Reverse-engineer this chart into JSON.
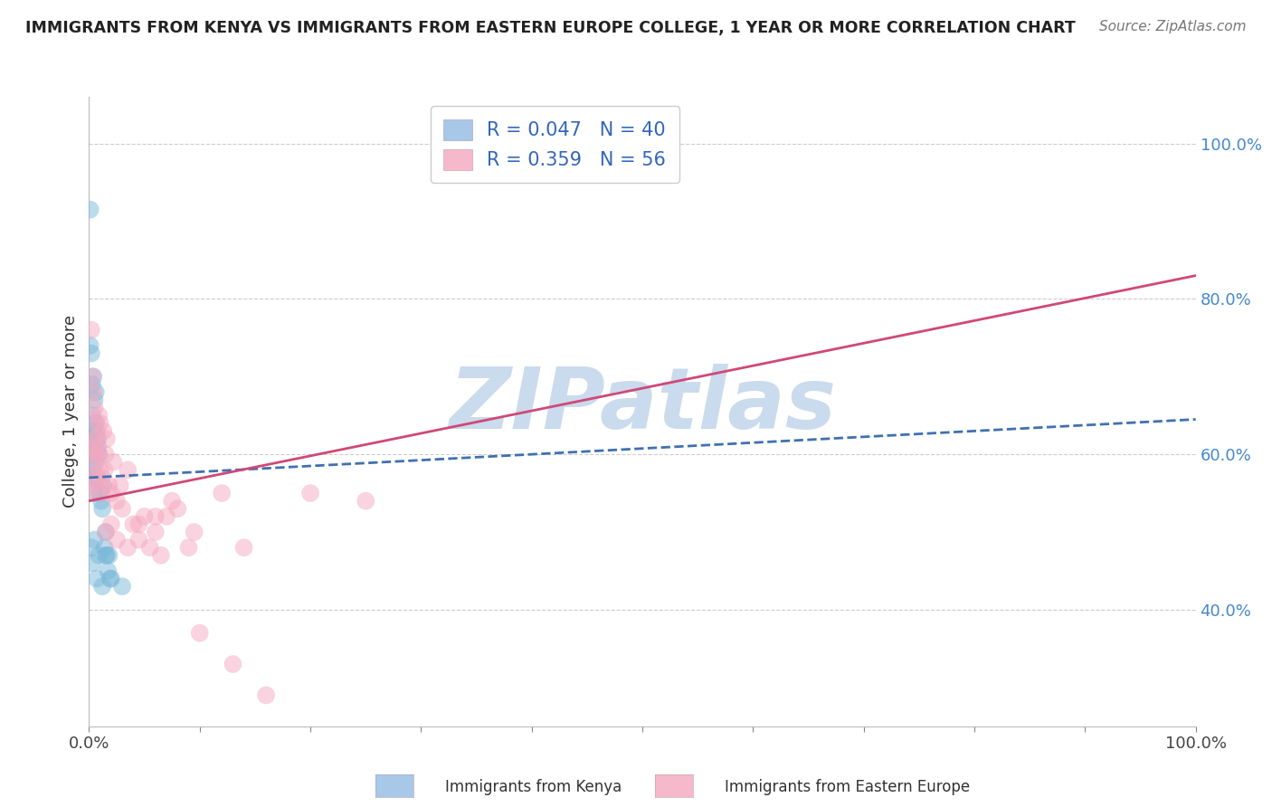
{
  "title": "IMMIGRANTS FROM KENYA VS IMMIGRANTS FROM EASTERN EUROPE COLLEGE, 1 YEAR OR MORE CORRELATION CHART",
  "source": "Source: ZipAtlas.com",
  "ylabel": "College, 1 year or more",
  "ylabel_right_ticks": [
    "40.0%",
    "60.0%",
    "80.0%",
    "100.0%"
  ],
  "ylabel_right_vals": [
    0.4,
    0.6,
    0.8,
    1.0
  ],
  "blue_scatter_x": [
    0.001,
    0.002,
    0.002,
    0.003,
    0.003,
    0.004,
    0.004,
    0.005,
    0.005,
    0.006,
    0.006,
    0.007,
    0.007,
    0.008,
    0.008,
    0.009,
    0.01,
    0.011,
    0.012,
    0.013,
    0.014,
    0.015,
    0.016,
    0.017,
    0.018,
    0.019,
    0.003,
    0.004,
    0.006,
    0.002,
    0.001,
    0.002,
    0.003,
    0.005,
    0.007,
    0.009,
    0.012,
    0.015,
    0.02,
    0.03
  ],
  "blue_scatter_y": [
    0.915,
    0.62,
    0.57,
    0.65,
    0.6,
    0.63,
    0.58,
    0.67,
    0.55,
    0.64,
    0.59,
    0.63,
    0.57,
    0.62,
    0.61,
    0.6,
    0.55,
    0.54,
    0.53,
    0.56,
    0.48,
    0.5,
    0.47,
    0.45,
    0.47,
    0.44,
    0.69,
    0.7,
    0.68,
    0.73,
    0.74,
    0.48,
    0.46,
    0.49,
    0.44,
    0.47,
    0.43,
    0.47,
    0.44,
    0.43
  ],
  "pink_scatter_x": [
    0.001,
    0.002,
    0.003,
    0.004,
    0.005,
    0.006,
    0.007,
    0.008,
    0.009,
    0.01,
    0.011,
    0.012,
    0.013,
    0.014,
    0.015,
    0.016,
    0.018,
    0.02,
    0.022,
    0.025,
    0.028,
    0.03,
    0.035,
    0.04,
    0.045,
    0.05,
    0.055,
    0.06,
    0.065,
    0.07,
    0.08,
    0.09,
    0.1,
    0.12,
    0.14,
    0.002,
    0.003,
    0.004,
    0.005,
    0.006,
    0.007,
    0.008,
    0.01,
    0.012,
    0.015,
    0.02,
    0.025,
    0.035,
    0.045,
    0.06,
    0.075,
    0.095,
    0.13,
    0.16,
    0.2,
    0.25
  ],
  "pink_scatter_y": [
    0.56,
    0.55,
    0.6,
    0.58,
    0.62,
    0.61,
    0.57,
    0.6,
    0.65,
    0.64,
    0.55,
    0.57,
    0.63,
    0.58,
    0.6,
    0.62,
    0.56,
    0.55,
    0.59,
    0.54,
    0.56,
    0.53,
    0.58,
    0.51,
    0.49,
    0.52,
    0.48,
    0.5,
    0.47,
    0.52,
    0.53,
    0.48,
    0.37,
    0.55,
    0.48,
    0.76,
    0.7,
    0.68,
    0.66,
    0.64,
    0.62,
    0.6,
    0.58,
    0.56,
    0.5,
    0.51,
    0.49,
    0.48,
    0.51,
    0.52,
    0.54,
    0.5,
    0.33,
    0.29,
    0.55,
    0.54
  ],
  "blue_line_x": [
    0.0,
    1.0
  ],
  "blue_line_y": [
    0.57,
    0.645
  ],
  "pink_line_x": [
    0.0,
    1.0
  ],
  "pink_line_y": [
    0.54,
    0.83
  ],
  "blue_color": "#7ab8d9",
  "pink_color": "#f5a8c0",
  "blue_line_color": "#4070b0",
  "pink_line_color": "#d04878",
  "watermark": "ZIPatlas",
  "watermark_color": "#c5d8ec",
  "xlim": [
    0.0,
    1.0
  ],
  "ylim": [
    0.25,
    1.06
  ],
  "xticks": [
    0.0,
    0.1,
    0.2,
    0.3,
    0.4,
    0.5,
    0.6,
    0.7,
    0.8,
    0.9,
    1.0
  ],
  "xticklabels": [
    "0.0%",
    "",
    "",
    "",
    "",
    "",
    "",
    "",
    "",
    "",
    "100.0%"
  ],
  "grid_vals": [
    0.4,
    0.6,
    0.8,
    1.0
  ],
  "legend_r1": "R = 0.047   N = 40",
  "legend_r2": "R = 0.359   N = 56",
  "legend_color1": "#a8c8e8",
  "legend_color2": "#f5b8cc",
  "bottom_label1": "Immigrants from Kenya",
  "bottom_label2": "Immigrants from Eastern Europe"
}
